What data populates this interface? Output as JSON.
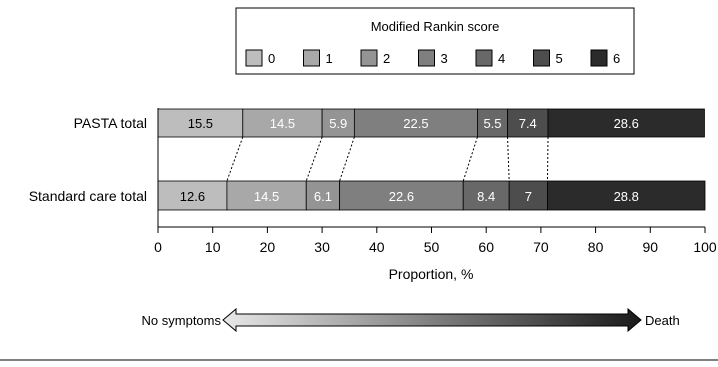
{
  "chart_data": {
    "type": "bar",
    "orientation": "horizontal",
    "stacked": true,
    "legend": {
      "title": "Modified Rankin score",
      "entries": [
        "0",
        "1",
        "2",
        "3",
        "4",
        "5",
        "6"
      ],
      "placement": "top-center"
    },
    "colors": [
      "#bdbdbd",
      "#a8a8a8",
      "#949494",
      "#7f7f7f",
      "#686868",
      "#4d4d4d",
      "#2b2b2b"
    ],
    "categories": [
      "PASTA total",
      "Standard care total"
    ],
    "series": [
      {
        "name": "0",
        "values": [
          15.5,
          12.6
        ]
      },
      {
        "name": "1",
        "values": [
          14.5,
          14.5
        ]
      },
      {
        "name": "2",
        "values": [
          5.9,
          6.1
        ]
      },
      {
        "name": "3",
        "values": [
          22.5,
          22.6
        ]
      },
      {
        "name": "4",
        "values": [
          5.5,
          8.4
        ]
      },
      {
        "name": "5",
        "values": [
          7.4,
          7
        ]
      },
      {
        "name": "6",
        "values": [
          28.6,
          28.8
        ]
      }
    ],
    "xlabel": "Proportion, %",
    "xlim": [
      0,
      100
    ],
    "xticks": [
      "0",
      "10",
      "20",
      "30",
      "40",
      "50",
      "60",
      "70",
      "80",
      "90",
      "100"
    ],
    "grid": false,
    "scale_arrow": {
      "left_label": "No symptoms",
      "right_label": "Death"
    }
  }
}
